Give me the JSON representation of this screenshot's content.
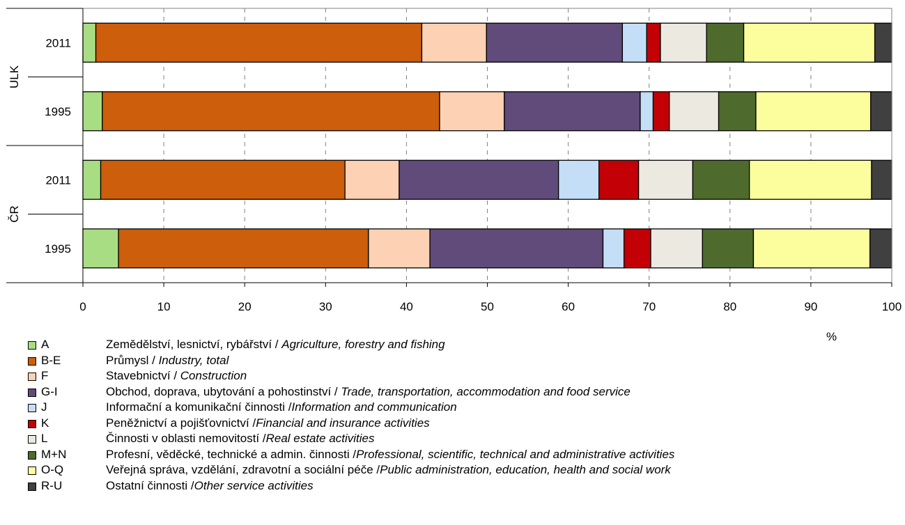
{
  "chart_data": {
    "type": "bar",
    "orientation": "horizontal",
    "stacked": true,
    "xlabel": "%",
    "xlim": [
      0,
      100
    ],
    "xticks": [
      0,
      10,
      20,
      30,
      40,
      50,
      60,
      70,
      80,
      90,
      100
    ],
    "groups": [
      {
        "name": "ULK",
        "categories": [
          "2011",
          "1995"
        ]
      },
      {
        "name": "ČR",
        "categories": [
          "2011",
          "1995"
        ]
      }
    ],
    "series": [
      {
        "code": "A",
        "name_cz": "Zemědělství, lesnictví, rybářství / ",
        "name_en": "Agriculture, forestry and fishing",
        "color": "#a9dd83",
        "values": [
          1.6,
          2.4,
          2.2,
          4.4
        ]
      },
      {
        "code": "B-E",
        "name_cz": "Průmysl / ",
        "name_en": "Industry, total",
        "color": "#cc5e0c",
        "values": [
          40.3,
          41.7,
          30.2,
          30.9
        ]
      },
      {
        "code": "F",
        "name_cz": "Stavebnictví / ",
        "name_en": "Construction",
        "color": "#fdd1b3",
        "values": [
          8.0,
          8.0,
          6.7,
          7.6
        ]
      },
      {
        "code": "G-I",
        "name_cz": "Obchod, doprava, ubytování a pohostinství / ",
        "name_en": "Trade, transportation, accommodation and food service",
        "color": "#604b7a",
        "values": [
          16.8,
          16.8,
          19.7,
          21.4
        ]
      },
      {
        "code": "J",
        "name_cz": "Informační a komunikační činnosti /",
        "name_en": "Information and communication",
        "color": "#c5def7",
        "values": [
          3.0,
          1.6,
          5.0,
          2.6
        ]
      },
      {
        "code": "K",
        "name_cz": "Peněžnictví a pojišťovnictví /",
        "name_en": "Financial and insurance activities",
        "color": "#c20005",
        "values": [
          1.7,
          2.0,
          4.9,
          3.3
        ]
      },
      {
        "code": "L",
        "name_cz": "Činnosti v oblasti nemovitostí /",
        "name_en": "Real estate activities",
        "color": "#ece9e1",
        "values": [
          5.7,
          6.1,
          6.7,
          6.4
        ]
      },
      {
        "code": "M+N",
        "name_cz": "Profesní, věděcké, technické a admin. činnosti /",
        "name_en": "Professional, scientific, technical and administrative activities",
        "color": "#4e6b2d",
        "values": [
          4.6,
          4.6,
          7.0,
          6.3
        ]
      },
      {
        "code": "O-Q",
        "name_cz": "Veřejná správa, vzdělání, zdravotní a sociální péče /",
        "name_en": "Public administration, education, health and social work",
        "color": "#fcfe9e",
        "values": [
          16.2,
          14.2,
          15.1,
          14.4
        ]
      },
      {
        "code": "R-U",
        "name_cz": "Ostatní činnosti /",
        "name_en": "Other service activities",
        "color": "#404040",
        "values": [
          2.1,
          2.6,
          2.5,
          2.7
        ]
      }
    ]
  }
}
